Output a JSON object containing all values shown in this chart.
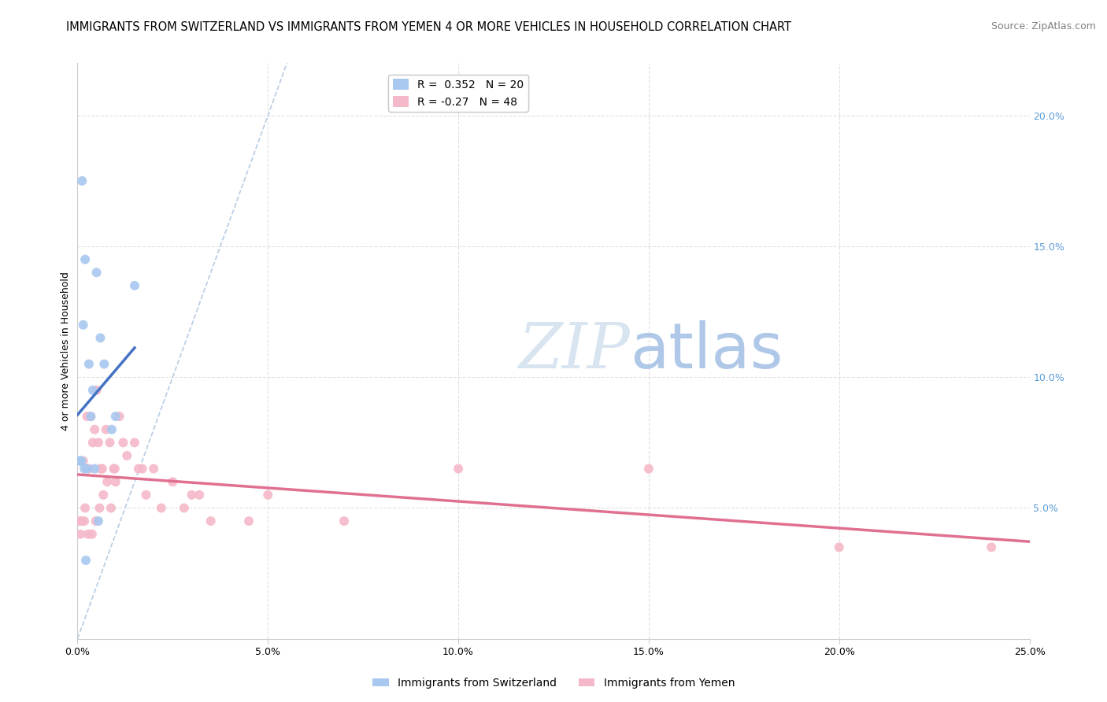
{
  "title": "IMMIGRANTS FROM SWITZERLAND VS IMMIGRANTS FROM YEMEN 4 OR MORE VEHICLES IN HOUSEHOLD CORRELATION CHART",
  "source": "Source: ZipAtlas.com",
  "ylabel_left": "4 or more Vehicles in Household",
  "xlabel_ticks": [
    "0.0%",
    "5.0%",
    "10.0%",
    "15.0%",
    "20.0%",
    "25.0%"
  ],
  "xlabel_values": [
    0.0,
    5.0,
    10.0,
    15.0,
    20.0,
    25.0
  ],
  "ylabel_ticks_right": [
    "5.0%",
    "10.0%",
    "15.0%",
    "20.0%"
  ],
  "ylabel_values_right": [
    5.0,
    10.0,
    15.0,
    20.0
  ],
  "xlim": [
    0.0,
    25.0
  ],
  "ylim": [
    0.0,
    22.0
  ],
  "swiss_color": "#a8c8f0",
  "yemen_color": "#f5b8c8",
  "swiss_line_color": "#4472c4",
  "yemen_line_color": "#e07090",
  "ref_line_color": "#b8cce4",
  "swiss_r": 0.352,
  "swiss_n": 20,
  "yemen_r": -0.27,
  "yemen_n": 48,
  "swiss_x": [
    0.1,
    0.2,
    0.3,
    0.15,
    0.4,
    0.5,
    0.6,
    0.05,
    0.25,
    0.35,
    0.45,
    0.7,
    0.9,
    1.5,
    0.08,
    0.18,
    0.55,
    0.12,
    1.0,
    0.22
  ],
  "swiss_y": [
    6.8,
    14.5,
    10.5,
    12.0,
    9.5,
    14.0,
    11.5,
    6.8,
    6.5,
    8.5,
    6.5,
    10.5,
    8.0,
    13.5,
    6.8,
    6.5,
    4.5,
    17.5,
    8.5,
    3.0
  ],
  "yemen_x": [
    0.1,
    0.2,
    0.3,
    0.15,
    0.25,
    0.4,
    0.5,
    0.05,
    0.35,
    0.45,
    0.55,
    0.65,
    0.75,
    0.85,
    0.95,
    1.1,
    1.3,
    1.5,
    1.7,
    2.0,
    2.5,
    3.0,
    1.8,
    2.2,
    3.5,
    0.08,
    0.18,
    0.28,
    0.38,
    0.48,
    0.58,
    0.68,
    0.78,
    0.88,
    0.98,
    1.2,
    1.6,
    2.8,
    5.0,
    7.0,
    10.0,
    15.0,
    20.0,
    24.0,
    0.6,
    1.0,
    3.2,
    4.5
  ],
  "yemen_y": [
    4.5,
    5.0,
    6.5,
    6.8,
    8.5,
    7.5,
    9.5,
    4.5,
    8.5,
    8.0,
    7.5,
    6.5,
    8.0,
    7.5,
    6.5,
    8.5,
    7.0,
    7.5,
    6.5,
    6.5,
    6.0,
    5.5,
    5.5,
    5.0,
    4.5,
    4.0,
    4.5,
    4.0,
    4.0,
    4.5,
    5.0,
    5.5,
    6.0,
    5.0,
    6.5,
    7.5,
    6.5,
    5.0,
    5.5,
    4.5,
    6.5,
    6.5,
    3.5,
    3.5,
    6.5,
    6.0,
    5.5,
    4.5
  ],
  "background_color": "#ffffff",
  "grid_color": "#e0e0e0",
  "title_fontsize": 10.5,
  "source_fontsize": 9,
  "axis_label_fontsize": 9,
  "tick_fontsize": 9,
  "legend_fontsize": 10,
  "marker_size": 75,
  "watermark_zip": "ZIP",
  "watermark_atlas": "atlas",
  "watermark_color_zip": "#d8e4f0",
  "watermark_color_atlas": "#b0c8e8",
  "watermark_fontsize": 58
}
